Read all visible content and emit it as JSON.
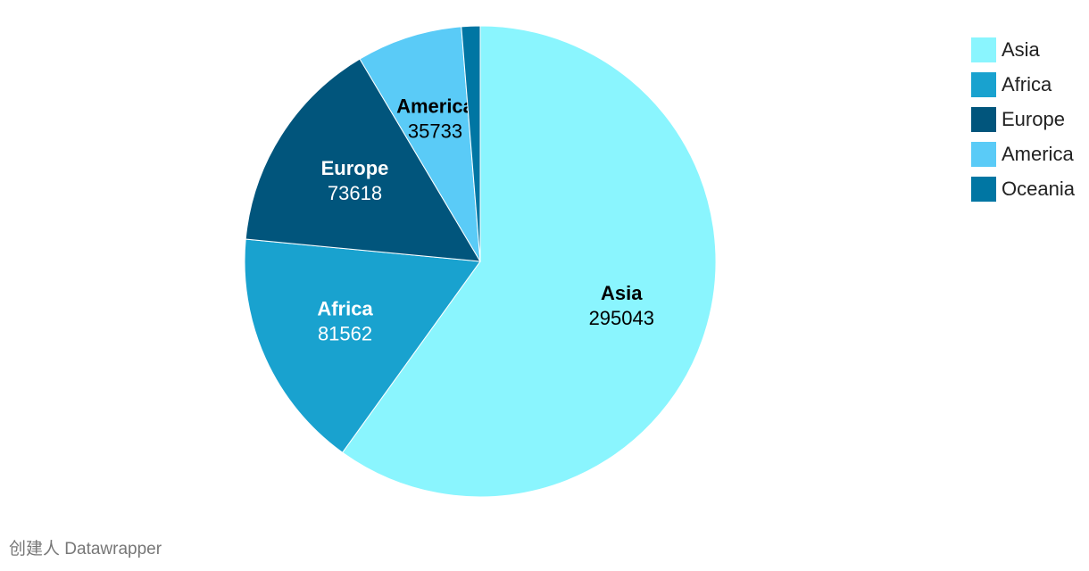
{
  "chart_data": {
    "type": "pie",
    "categories": [
      "Asia",
      "Africa",
      "Europe",
      "America",
      "Oceania"
    ],
    "values": [
      295043,
      81562,
      73618,
      35733,
      6300
    ],
    "colors": [
      "#8af5fe",
      "#19a2cf",
      "#01557c",
      "#5acbf7",
      "#0076a3"
    ],
    "legend": "top-right"
  },
  "credit": "创建人 Datawrapper"
}
